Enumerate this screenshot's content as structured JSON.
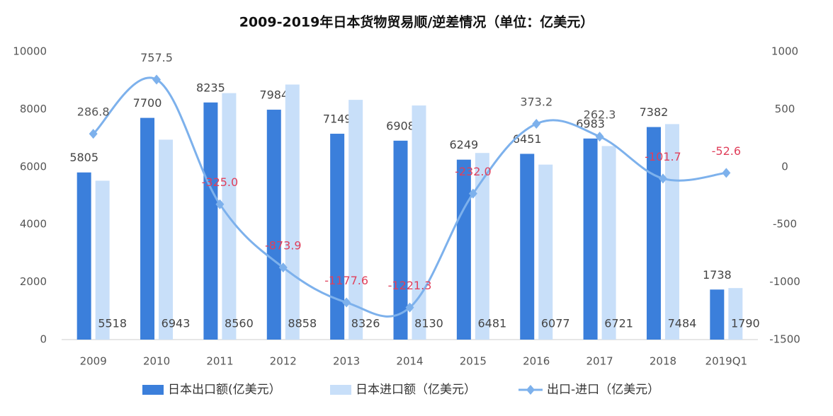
{
  "chart_data": {
    "type": "bar",
    "title": "2009-2019年日本货物贸易顺/逆差情况（单位：亿美元）",
    "categories": [
      "2009",
      "2010",
      "2011",
      "2012",
      "2013",
      "2014",
      "2015",
      "2016",
      "2017",
      "2018",
      "2019Q1"
    ],
    "series": [
      {
        "name": "日本出口额(亿美元）",
        "type": "bar",
        "color": "#3b7fdb",
        "values": [
          5805,
          7700,
          8235,
          7984,
          7149,
          6908,
          6249,
          6451,
          6983,
          7382,
          1738
        ]
      },
      {
        "name": "日本进口额（亿美元）",
        "type": "bar",
        "color": "#c8dff9",
        "values": [
          5518,
          6943,
          8560,
          8858,
          8326,
          8130,
          6481,
          6077,
          6721,
          7484,
          1790
        ]
      },
      {
        "name": "出口-进口（亿美元）",
        "type": "line",
        "axis": "y2",
        "color": "#7db1ec",
        "values": [
          286.8,
          757.5,
          -325.0,
          -873.9,
          -1177.6,
          -1221.3,
          -232.0,
          373.2,
          262.3,
          -101.7,
          -52.6
        ],
        "value_labels": [
          "286.8",
          "757.5",
          "-325.0",
          "-873.9",
          "-1177.6",
          "-1221.3",
          "-232.0",
          "373.2",
          "262.3",
          "-101.7",
          "-52.6"
        ]
      }
    ],
    "ylim": [
      0,
      10000
    ],
    "yticks": [
      0,
      2000,
      4000,
      6000,
      8000,
      10000
    ],
    "y2lim": [
      -1500,
      1000
    ],
    "y2ticks": [
      -1500,
      -1000,
      -500,
      0,
      500,
      1000
    ],
    "grid": false,
    "legend": "bottom"
  }
}
